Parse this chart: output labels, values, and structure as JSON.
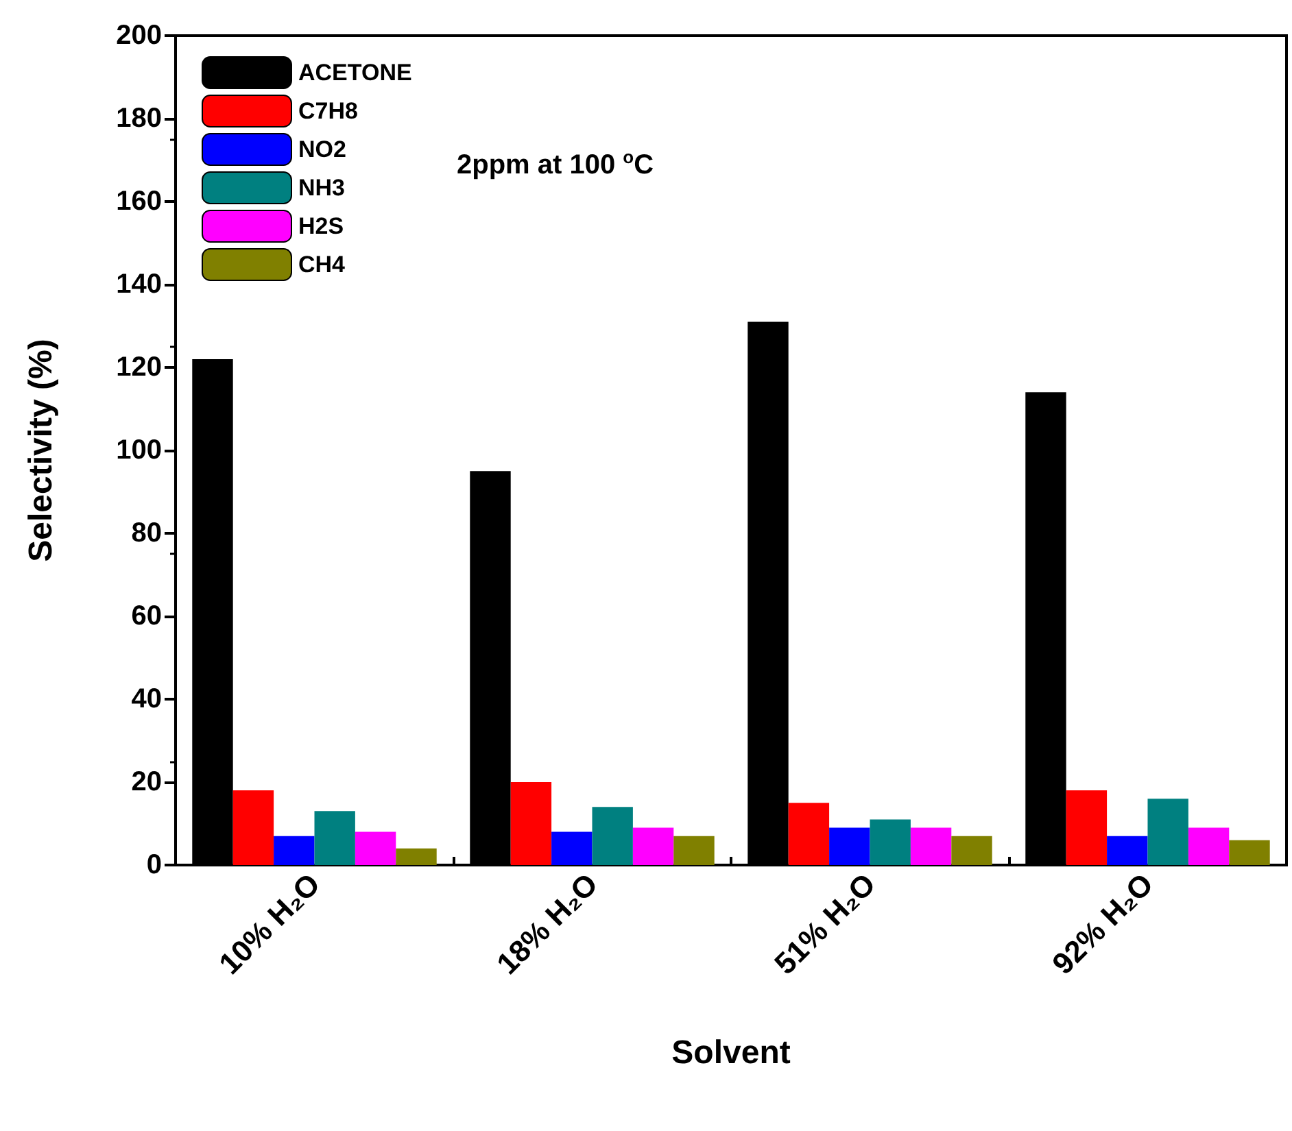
{
  "chart_data": {
    "type": "bar",
    "xlabel": "Solvent",
    "ylabel": "Selectivity (%)",
    "annotations": [
      {
        "text": "2ppm at 100 $^{o}$C"
      }
    ],
    "categories": [
      "10% H₂O",
      "18% H₂O",
      "51% H₂O",
      "92% H₂O"
    ],
    "series": [
      {
        "name": "ACETONE",
        "color": "#000000",
        "values": [
          122,
          95,
          131,
          114
        ]
      },
      {
        "name": "C7H8",
        "color": "#ff0000",
        "values": [
          18,
          20,
          15,
          18
        ]
      },
      {
        "name": "NO2",
        "color": "#0000ff",
        "values": [
          7,
          8,
          9,
          7
        ]
      },
      {
        "name": "NH3",
        "color": "#008080",
        "values": [
          13,
          14,
          11,
          16
        ]
      },
      {
        "name": "H2S",
        "color": "#ff00ff",
        "values": [
          8,
          9,
          9,
          9
        ]
      },
      {
        "name": "CH4",
        "color": "#808000",
        "values": [
          4,
          7,
          7,
          6
        ]
      }
    ],
    "ylim": [
      0,
      200
    ],
    "yticks": [
      0,
      20,
      40,
      60,
      80,
      100,
      120,
      140,
      160,
      180,
      200
    ],
    "grid": false,
    "legend": "top left"
  }
}
